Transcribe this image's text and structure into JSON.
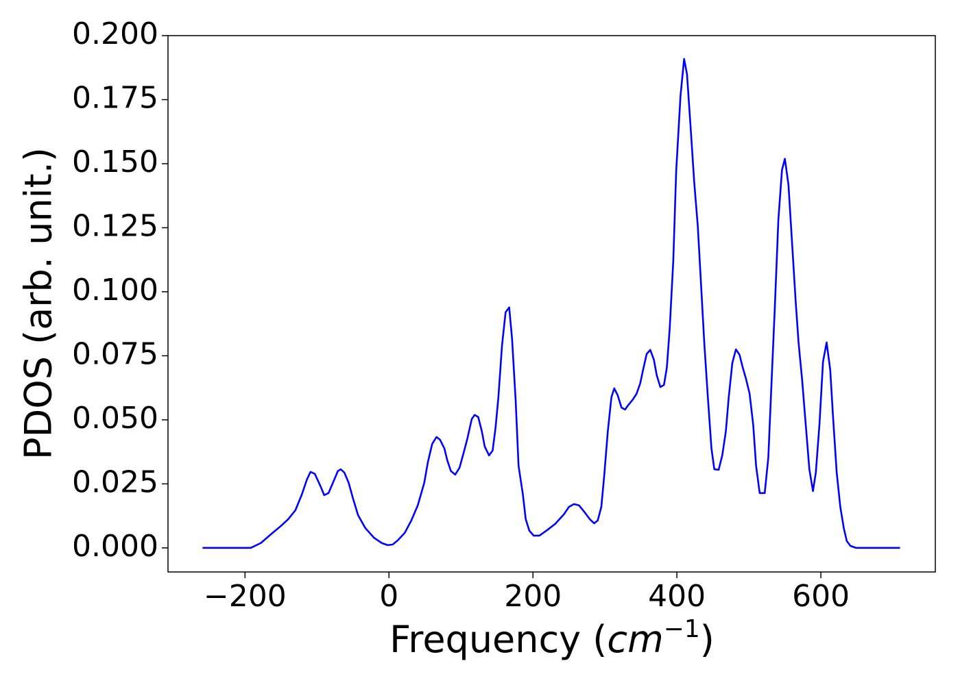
{
  "chart_data": {
    "type": "line",
    "x_label_parts": [
      "Frequency (",
      "cm",
      "−1",
      ")"
    ],
    "y_label": "PDOS (arb. unit.)",
    "xlim": [
      -307,
      759
    ],
    "ylim": [
      -0.0094,
      0.2
    ],
    "xticks": [
      {
        "value": -200,
        "label": "−200"
      },
      0,
      200,
      400,
      600
    ],
    "yticks": [
      {
        "value": 0,
        "label": "0.000"
      },
      0.025,
      {
        "value": 0.05,
        "label": "0.050"
      },
      0.075,
      {
        "value": 0.1,
        "label": "0.100"
      },
      0.125,
      {
        "value": 0.15,
        "label": "0.150"
      },
      0.175,
      {
        "value": 0.2,
        "label": "0.200"
      }
    ],
    "series": [
      {
        "color": "#0000ff",
        "x": [
          -259,
          -192,
          -178,
          -164,
          -150,
          -140,
          -130,
          -121,
          -114,
          -109,
          -103,
          -95,
          -90,
          -84,
          -77,
          -71,
          -67,
          -62,
          -56,
          -50,
          -43,
          -33,
          -21,
          -10,
          -2,
          5,
          12,
          22,
          31,
          40,
          49,
          54,
          60,
          66,
          71,
          77,
          81,
          86,
          92,
          98,
          104,
          109,
          115,
          119,
          124,
          129,
          133,
          139,
          144,
          148,
          152,
          157,
          162,
          167,
          171,
          176,
          180,
          186,
          190,
          195,
          201,
          209,
          220,
          231,
          243,
          250,
          257,
          264,
          271,
          279,
          285,
          290,
          295,
          299,
          304,
          309,
          313,
          318,
          323,
          328,
          332,
          339,
          344,
          349,
          353,
          358,
          363,
          368,
          372,
          377,
          382,
          386,
          390,
          395,
          399,
          405,
          410,
          414,
          419,
          424,
          429,
          433,
          438,
          443,
          448,
          452,
          458,
          463,
          468,
          472,
          477,
          482,
          487,
          491,
          496,
          501,
          506,
          510,
          515,
          522,
          527,
          531,
          536,
          541,
          546,
          550,
          555,
          560,
          565,
          569,
          574,
          579,
          584,
          589,
          593,
          598,
          603,
          608,
          613,
          617,
          622,
          627,
          632,
          636,
          641,
          649,
          710
        ],
        "values": [
          0,
          0,
          0.0019,
          0.0053,
          0.0086,
          0.0112,
          0.0147,
          0.0209,
          0.0267,
          0.0297,
          0.0289,
          0.024,
          0.0206,
          0.0214,
          0.026,
          0.03,
          0.0307,
          0.0294,
          0.0254,
          0.0193,
          0.0128,
          0.0078,
          0.004,
          0.0019,
          0.0011,
          0.0013,
          0.0029,
          0.0059,
          0.0107,
          0.0166,
          0.0254,
          0.0334,
          0.0406,
          0.0433,
          0.0422,
          0.0388,
          0.0342,
          0.03,
          0.0286,
          0.0313,
          0.0374,
          0.0428,
          0.0503,
          0.0519,
          0.0511,
          0.0455,
          0.0396,
          0.0361,
          0.038,
          0.0468,
          0.0588,
          0.0789,
          0.092,
          0.0939,
          0.0816,
          0.0575,
          0.0321,
          0.0209,
          0.0112,
          0.0067,
          0.0048,
          0.0048,
          0.007,
          0.0094,
          0.0131,
          0.016,
          0.0171,
          0.0166,
          0.0142,
          0.0112,
          0.0096,
          0.0107,
          0.016,
          0.0281,
          0.0455,
          0.0588,
          0.0623,
          0.0594,
          0.0548,
          0.054,
          0.0556,
          0.058,
          0.0602,
          0.0642,
          0.0695,
          0.0757,
          0.0773,
          0.0735,
          0.0674,
          0.0628,
          0.0636,
          0.0703,
          0.0856,
          0.1123,
          0.1471,
          0.1765,
          0.1909,
          0.185,
          0.1644,
          0.143,
          0.1257,
          0.1056,
          0.0802,
          0.0588,
          0.0388,
          0.0307,
          0.0305,
          0.0361,
          0.0455,
          0.0588,
          0.0722,
          0.0775,
          0.0754,
          0.0709,
          0.066,
          0.0602,
          0.0481,
          0.0321,
          0.0214,
          0.0214,
          0.0353,
          0.0615,
          0.0936,
          0.1283,
          0.1476,
          0.1519,
          0.1417,
          0.119,
          0.0963,
          0.0802,
          0.0655,
          0.0481,
          0.0307,
          0.0222,
          0.0294,
          0.0481,
          0.0727,
          0.0802,
          0.0695,
          0.0508,
          0.0294,
          0.016,
          0.0075,
          0.0027,
          0.0008,
          0,
          0
        ]
      }
    ]
  }
}
